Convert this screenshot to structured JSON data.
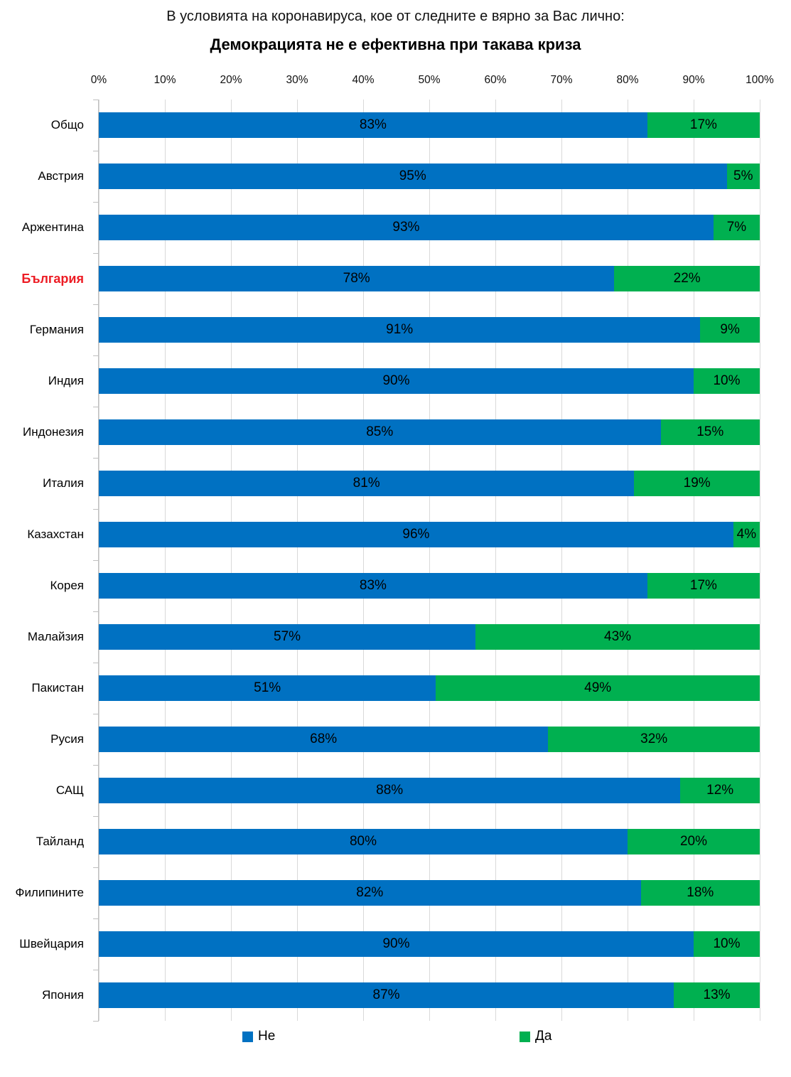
{
  "title": {
    "line1": "В условията на коронавируса, кое от следните е вярно за Вас лично:",
    "line2": "Демокрацията не е ефективна при такава криза"
  },
  "colors": {
    "no": "#0071C2",
    "yes": "#00B050",
    "highlight": "#ED1C24",
    "gridline": "#D9D9D9",
    "axis": "#BFBFBF"
  },
  "axis": {
    "ticks": [
      "0%",
      "10%",
      "20%",
      "30%",
      "40%",
      "50%",
      "60%",
      "70%",
      "80%",
      "90%",
      "100%"
    ],
    "min": 0,
    "max": 100
  },
  "legend": [
    {
      "label": "Не",
      "color": "#0071C2"
    },
    {
      "label": "Да",
      "color": "#00B050"
    }
  ],
  "chart_data": {
    "type": "bar",
    "orientation": "horizontal",
    "stacked": true,
    "title": "Демокрацията не е ефективна при такава криза",
    "subtitle": "В условията на коронавируса, кое от следните е вярно за Вас лично:",
    "xlim": [
      0,
      100
    ],
    "grid": true,
    "legend_position": "bottom",
    "value_suffix": "%",
    "categories": [
      "Общо",
      "Австрия",
      "Аржентина",
      "България",
      "Германия",
      "Индия",
      "Индонезия",
      "Италия",
      "Казахстан",
      "Корея",
      "Малайзия",
      "Пакистан",
      "Русия",
      "САЩ",
      "Тайланд",
      "Филипините",
      "Швейцария",
      "Япония"
    ],
    "highlighted_category": "България",
    "series": [
      {
        "name": "Не",
        "color": "#0071C2",
        "values": [
          83,
          95,
          93,
          78,
          91,
          90,
          85,
          81,
          96,
          83,
          57,
          51,
          68,
          88,
          80,
          82,
          90,
          87
        ]
      },
      {
        "name": "Да",
        "color": "#00B050",
        "values": [
          17,
          5,
          7,
          22,
          9,
          10,
          15,
          19,
          4,
          17,
          43,
          49,
          32,
          12,
          20,
          18,
          10,
          13
        ]
      }
    ]
  }
}
